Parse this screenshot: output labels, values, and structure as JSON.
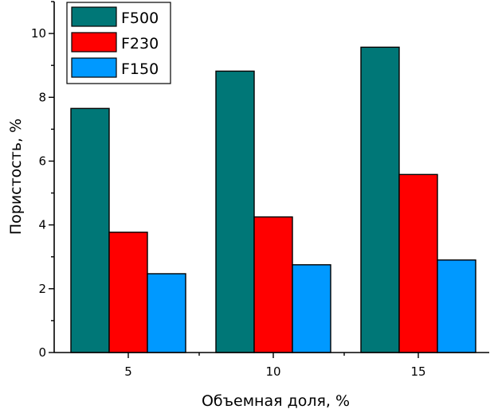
{
  "chart_data": {
    "type": "bar",
    "categories": [
      "5",
      "10",
      "15"
    ],
    "series": [
      {
        "name": "F500",
        "values": [
          7.65,
          8.82,
          9.57
        ],
        "color": "#007777"
      },
      {
        "name": "F230",
        "values": [
          3.77,
          4.25,
          5.58
        ],
        "color": "#ff0000"
      },
      {
        "name": "F150",
        "values": [
          2.47,
          2.75,
          2.9
        ],
        "color": "#0099ff"
      }
    ],
    "xlabel": "Объемная доля, %",
    "ylabel": "Пористость, %",
    "ylim": [
      0,
      11
    ],
    "yticks": [
      "0",
      "2",
      "4",
      "6",
      "8",
      "10"
    ],
    "legend_position": "top-left",
    "grid": false
  }
}
